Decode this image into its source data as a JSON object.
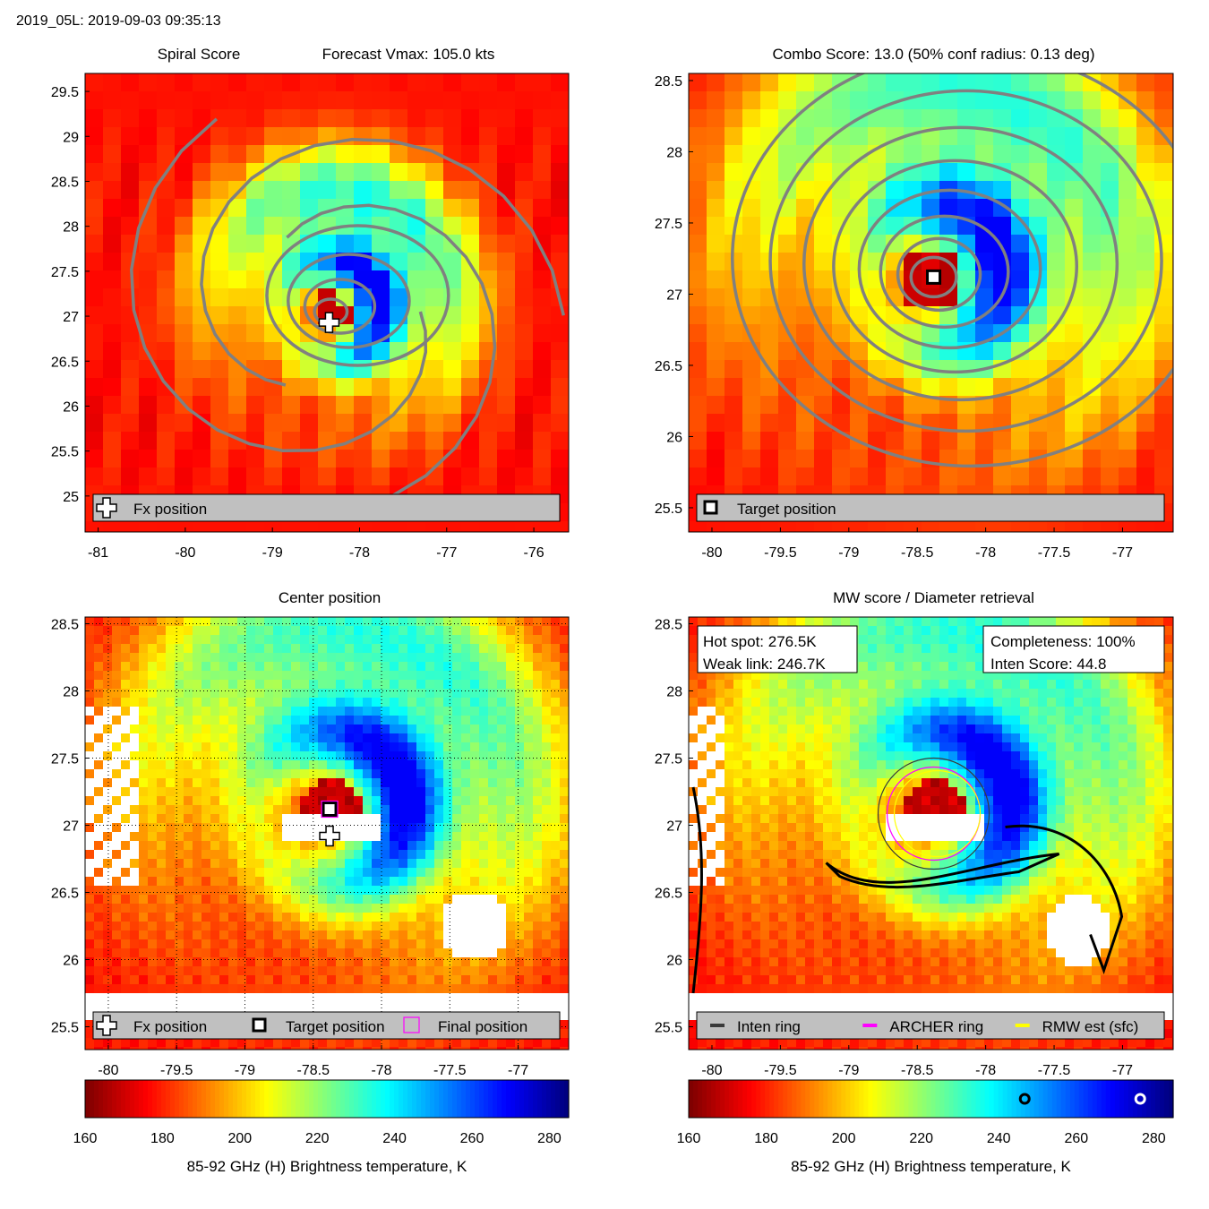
{
  "header": {
    "storm_time": "2019_05L: 2019-09-03 09:35:13"
  },
  "colors": {
    "colormap": "jet",
    "eye": "#0a0fa8",
    "contour": "#808080",
    "legend_bg": "#c0c0c0",
    "inten_ring": "#3a3a3a",
    "archer_ring": "#ff00ff",
    "rmw_ring": "#ffff00"
  },
  "chart_data": [
    {
      "type": "heatmap",
      "title": "Spiral Score",
      "subtitle": "Forecast Vmax: 105.0 kts",
      "xlim": [
        -81.15,
        -75.6
      ],
      "ylim": [
        24.6,
        29.7
      ],
      "xticks": [
        -81,
        -80,
        -79,
        -78,
        -77,
        -76
      ],
      "yticks": [
        25,
        25.5,
        26,
        26.5,
        27,
        27.5,
        28,
        28.5,
        29,
        29.5
      ],
      "center": {
        "x": -78.33,
        "y": 27.05
      },
      "overlays": "spiral contours",
      "markers": [
        {
          "label": "Fx position",
          "symbol": "cross",
          "x": -78.35,
          "y": 26.93
        }
      ],
      "legend": [
        "Fx position"
      ]
    },
    {
      "type": "heatmap",
      "title": "Combo Score: 13.0  (50% conf radius: 0.13 deg)",
      "xlim": [
        -80.17,
        -76.63
      ],
      "ylim": [
        25.33,
        28.55
      ],
      "xticks": [
        -80,
        -79.5,
        -79,
        -78.5,
        -78,
        -77.5,
        -77
      ],
      "yticks": [
        25.5,
        26,
        26.5,
        27,
        27.5,
        28,
        28.5
      ],
      "center": {
        "x": -78.38,
        "y": 27.12
      },
      "overlays": "concentric score contours",
      "markers": [
        {
          "label": "Target position",
          "symbol": "square",
          "x": -78.38,
          "y": 27.12
        }
      ],
      "legend": [
        "Target position"
      ]
    },
    {
      "type": "heatmap",
      "title": "Center position",
      "xlim": [
        -80.17,
        -76.63
      ],
      "ylim": [
        25.33,
        28.55
      ],
      "xticks": [
        -80,
        -79.5,
        -79,
        -78.5,
        -78,
        -77.5,
        -77
      ],
      "yticks": [
        25.5,
        26,
        26.5,
        27,
        27.5,
        28,
        28.5
      ],
      "grid": true,
      "center": {
        "x": -78.38,
        "y": 27.12
      },
      "markers": [
        {
          "label": "Fx position",
          "symbol": "cross",
          "x": -78.38,
          "y": 26.92
        },
        {
          "label": "Target position",
          "symbol": "square",
          "x": -78.38,
          "y": 27.12
        },
        {
          "label": "Final position",
          "symbol": "magenta-square",
          "x": -78.38,
          "y": 27.12
        }
      ],
      "legend": [
        "Fx position",
        "Target position",
        "Final position"
      ],
      "colorbar": {
        "range": [
          160,
          285
        ],
        "ticks": [
          160,
          180,
          200,
          220,
          240,
          260,
          280
        ],
        "label": "85-92 GHz (H) Brightness temperature, K"
      }
    },
    {
      "type": "heatmap",
      "title": "MW score / Diameter retrieval",
      "xlim": [
        -80.17,
        -76.63
      ],
      "ylim": [
        25.33,
        28.55
      ],
      "xticks": [
        -80,
        -79.5,
        -79,
        -78.5,
        -78,
        -77.5,
        -77
      ],
      "yticks": [
        25.5,
        26,
        26.5,
        27,
        27.5,
        28,
        28.5
      ],
      "center": {
        "x": -78.38,
        "y": 27.12
      },
      "info_left": [
        "Hot spot: 276.5K",
        "Weak link: 246.7K"
      ],
      "info_right": [
        "Completeness: 100%",
        "Inten Score: 44.8"
      ],
      "rings": [
        "Inten ring",
        "ARCHER ring",
        "RMW est (sfc)"
      ],
      "legend": [
        "Inten ring",
        "ARCHER ring",
        "RMW est (sfc)"
      ],
      "colorbar": {
        "range": [
          160,
          285
        ],
        "ticks": [
          160,
          180,
          200,
          220,
          240,
          260,
          280
        ],
        "label": "85-92 GHz (H) Brightness temperature, K",
        "markers_K": [
          246.7,
          276.5
        ]
      }
    }
  ]
}
